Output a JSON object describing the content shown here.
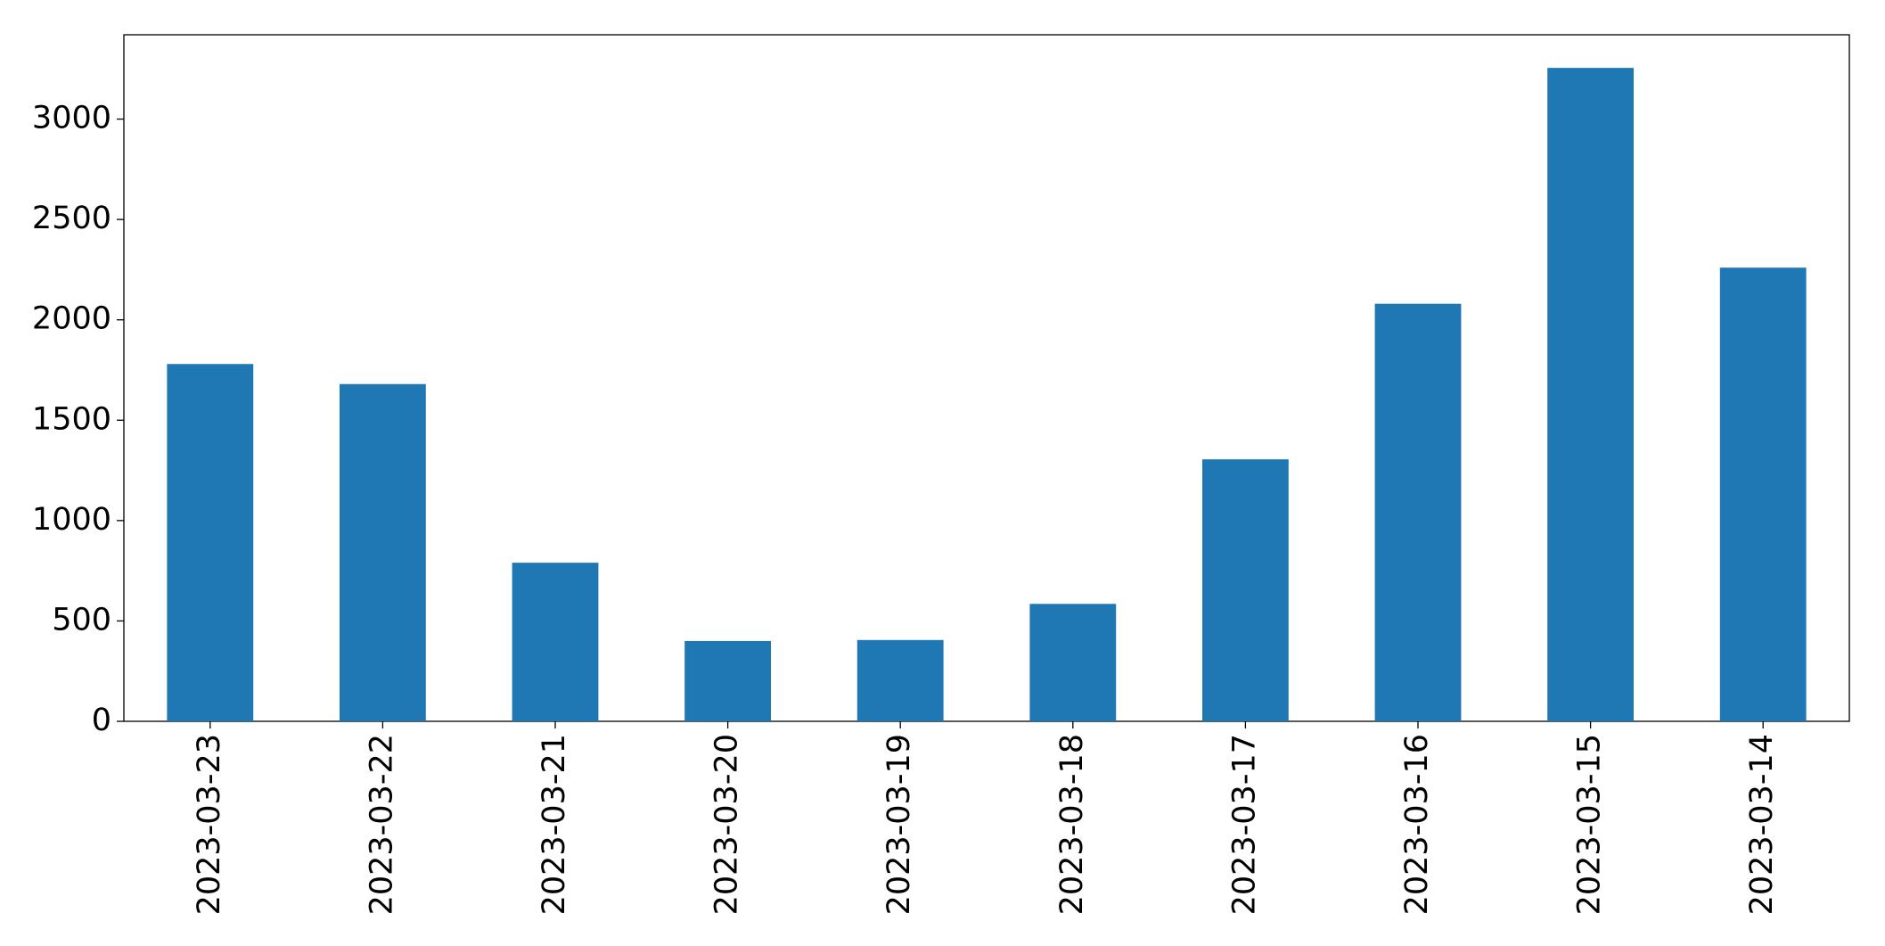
{
  "chart_data": {
    "type": "bar",
    "categories": [
      "2023-03-23",
      "2023-03-22",
      "2023-03-21",
      "2023-03-20",
      "2023-03-19",
      "2023-03-18",
      "2023-03-17",
      "2023-03-16",
      "2023-03-15",
      "2023-03-14"
    ],
    "values": [
      1780,
      1680,
      790,
      400,
      405,
      585,
      1305,
      2080,
      3255,
      2260
    ],
    "color": "#1f77b4",
    "ylim": [
      0,
      3420
    ],
    "yticks": [
      0,
      500,
      1000,
      1500,
      2000,
      2500,
      3000
    ],
    "grid": false
  }
}
